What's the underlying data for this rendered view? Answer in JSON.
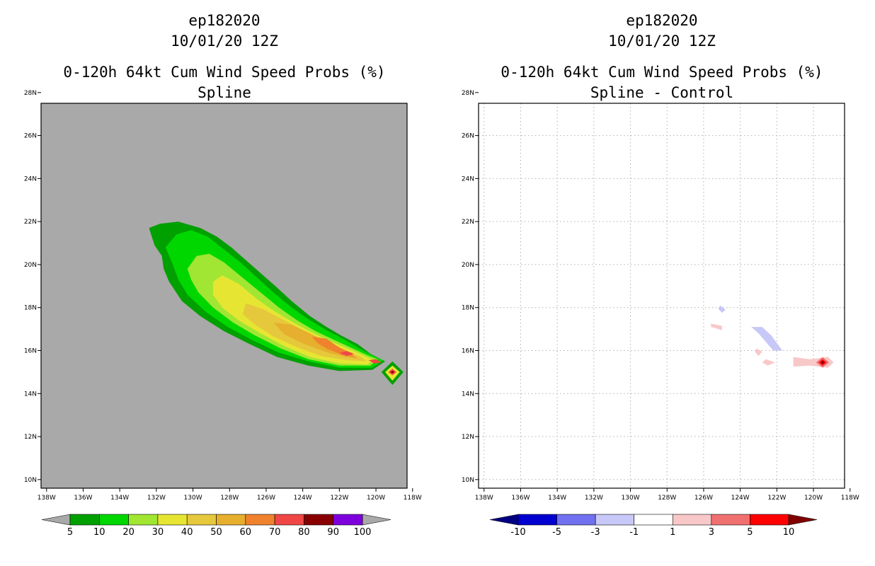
{
  "chart_data": [
    {
      "type": "heatmap",
      "storm_id": "ep182020",
      "datetime": "10/01/20 12Z",
      "title": "0-120h 64kt Cum Wind Speed Probs (%)",
      "subtitle": "Spline",
      "x_ticks": [
        "138W",
        "136W",
        "134W",
        "132W",
        "130W",
        "128W",
        "126W",
        "124W",
        "122W",
        "120W",
        "118W"
      ],
      "y_ticks": [
        "28N",
        "26N",
        "24N",
        "22N",
        "20N",
        "18N",
        "16N",
        "14N",
        "12N",
        "10N"
      ],
      "xlim": [
        -138.3,
        -118.3
      ],
      "ylim": [
        9.6,
        27.5
      ],
      "grid": false,
      "background_color": "#a9a9a9",
      "colorbar": {
        "labels": [
          "5",
          "10",
          "20",
          "30",
          "40",
          "50",
          "60",
          "70",
          "80",
          "90",
          "100"
        ],
        "colors": [
          "#00a000",
          "#00d700",
          "#a0e632",
          "#e6e632",
          "#e6c83c",
          "#e6af2d",
          "#f0822d",
          "#f04646",
          "#880000",
          "#7d00dc"
        ],
        "under_color": "#a9a9a9",
        "over_color": "#a9a9a9"
      },
      "contours": [
        {
          "level": 5,
          "color": "#00a000",
          "points": [
            [
              -132.4,
              21.7
            ],
            [
              -131.8,
              21.9
            ],
            [
              -130.8,
              22.0
            ],
            [
              -129.6,
              21.7
            ],
            [
              -128.7,
              21.3
            ],
            [
              -127.9,
              20.8
            ],
            [
              -127.1,
              20.2
            ],
            [
              -126.3,
              19.6
            ],
            [
              -125.5,
              19.0
            ],
            [
              -124.6,
              18.3
            ],
            [
              -123.6,
              17.6
            ],
            [
              -122.7,
              17.1
            ],
            [
              -121.9,
              16.7
            ],
            [
              -121.0,
              16.3
            ],
            [
              -120.3,
              15.85
            ],
            [
              -119.5,
              15.5
            ],
            [
              -120.2,
              15.1
            ],
            [
              -122.0,
              15.05
            ],
            [
              -123.7,
              15.3
            ],
            [
              -125.4,
              15.7
            ],
            [
              -126.9,
              16.3
            ],
            [
              -128.3,
              16.9
            ],
            [
              -129.6,
              17.6
            ],
            [
              -130.6,
              18.3
            ],
            [
              -131.3,
              19.2
            ],
            [
              -131.6,
              19.8
            ],
            [
              -131.7,
              20.4
            ],
            [
              -132.1,
              20.9
            ]
          ]
        },
        {
          "level": 10,
          "color": "#00d700",
          "points": [
            [
              -131.5,
              20.8
            ],
            [
              -130.9,
              21.4
            ],
            [
              -130.1,
              21.6
            ],
            [
              -129.2,
              21.3
            ],
            [
              -128.3,
              20.7
            ],
            [
              -127.4,
              20.1
            ],
            [
              -126.5,
              19.4
            ],
            [
              -125.6,
              18.7
            ],
            [
              -124.6,
              18.0
            ],
            [
              -123.6,
              17.4
            ],
            [
              -122.6,
              16.9
            ],
            [
              -121.7,
              16.5
            ],
            [
              -120.8,
              16.05
            ],
            [
              -120.0,
              15.7
            ],
            [
              -119.6,
              15.55
            ],
            [
              -120.2,
              15.2
            ],
            [
              -122.0,
              15.2
            ],
            [
              -123.7,
              15.5
            ],
            [
              -125.3,
              15.9
            ],
            [
              -126.8,
              16.5
            ],
            [
              -128.1,
              17.1
            ],
            [
              -129.3,
              17.8
            ],
            [
              -130.3,
              18.6
            ],
            [
              -130.8,
              19.3
            ],
            [
              -131.1,
              20.0
            ]
          ]
        },
        {
          "level": 20,
          "color": "#a0e632",
          "points": [
            [
              -130.3,
              19.8
            ],
            [
              -129.8,
              20.4
            ],
            [
              -129.1,
              20.5
            ],
            [
              -128.3,
              20.1
            ],
            [
              -127.3,
              19.4
            ],
            [
              -126.3,
              18.7
            ],
            [
              -125.3,
              18.0
            ],
            [
              -124.3,
              17.4
            ],
            [
              -123.3,
              16.9
            ],
            [
              -122.3,
              16.5
            ],
            [
              -121.4,
              16.15
            ],
            [
              -120.5,
              15.8
            ],
            [
              -119.9,
              15.6
            ],
            [
              -120.3,
              15.3
            ],
            [
              -122.0,
              15.3
            ],
            [
              -123.7,
              15.6
            ],
            [
              -125.2,
              16.1
            ],
            [
              -126.6,
              16.7
            ],
            [
              -127.8,
              17.3
            ],
            [
              -128.9,
              18.0
            ],
            [
              -129.7,
              18.7
            ],
            [
              -130.1,
              19.3
            ]
          ]
        },
        {
          "level": 30,
          "color": "#e6e632",
          "points": [
            [
              -128.9,
              19.2
            ],
            [
              -128.4,
              19.5
            ],
            [
              -127.5,
              19.1
            ],
            [
              -126.5,
              18.4
            ],
            [
              -125.5,
              17.8
            ],
            [
              -124.5,
              17.3
            ],
            [
              -123.4,
              16.8
            ],
            [
              -122.4,
              16.4
            ],
            [
              -121.4,
              16.05
            ],
            [
              -120.5,
              15.7
            ],
            [
              -120.1,
              15.55
            ],
            [
              -120.5,
              15.35
            ],
            [
              -122.0,
              15.4
            ],
            [
              -123.6,
              15.7
            ],
            [
              -125.0,
              16.2
            ],
            [
              -126.3,
              16.8
            ],
            [
              -127.5,
              17.4
            ],
            [
              -128.4,
              18.0
            ],
            [
              -128.9,
              18.6
            ]
          ]
        },
        {
          "level": 40,
          "color": "#e6c83c",
          "points": [
            [
              -127.1,
              18.2
            ],
            [
              -126.1,
              17.9
            ],
            [
              -125.0,
              17.4
            ],
            [
              -123.9,
              16.9
            ],
            [
              -122.8,
              16.4
            ],
            [
              -121.8,
              16.05
            ],
            [
              -120.9,
              15.75
            ],
            [
              -120.5,
              15.5
            ],
            [
              -121.6,
              15.55
            ],
            [
              -123.0,
              15.75
            ],
            [
              -124.3,
              16.15
            ],
            [
              -125.6,
              16.65
            ],
            [
              -126.6,
              17.2
            ],
            [
              -127.3,
              17.7
            ]
          ]
        },
        {
          "level": 50,
          "color": "#e6af2d",
          "points": [
            [
              -125.6,
              17.3
            ],
            [
              -124.6,
              17.2
            ],
            [
              -123.6,
              16.8
            ],
            [
              -122.6,
              16.35
            ],
            [
              -121.6,
              16.0
            ],
            [
              -120.9,
              15.6
            ],
            [
              -121.7,
              15.7
            ],
            [
              -122.8,
              15.95
            ],
            [
              -123.9,
              16.3
            ],
            [
              -125.0,
              16.75
            ]
          ]
        },
        {
          "level": 60,
          "color": "#f0822d",
          "points": [
            [
              -123.5,
              16.65
            ],
            [
              -122.7,
              16.55
            ],
            [
              -122.2,
              16.25
            ],
            [
              -121.7,
              16.0
            ],
            [
              -121.1,
              15.7
            ],
            [
              -121.8,
              15.8
            ],
            [
              -122.6,
              16.05
            ],
            [
              -123.2,
              16.35
            ]
          ]
        },
        {
          "level": 70,
          "color": "#f04646",
          "points": [
            [
              -121.6,
              15.98
            ],
            [
              -121.2,
              15.85
            ],
            [
              -121.6,
              15.75
            ],
            [
              -122.0,
              15.88
            ]
          ]
        },
        {
          "level": 70,
          "color": "#f04646",
          "points": [
            [
              -120.4,
              15.55
            ],
            [
              -120.0,
              15.6
            ],
            [
              -119.7,
              15.45
            ],
            [
              -120.1,
              15.4
            ]
          ]
        },
        {
          "level": 5,
          "color": "#00a000",
          "points": [
            [
              -119.1,
              15.5
            ],
            [
              -118.5,
              15.0
            ],
            [
              -119.1,
              14.4
            ],
            [
              -119.7,
              15.0
            ]
          ]
        },
        {
          "level": 30,
          "color": "#e6e632",
          "points": [
            [
              -119.1,
              15.3
            ],
            [
              -118.7,
              15.0
            ],
            [
              -119.1,
              14.6
            ],
            [
              -119.5,
              15.0
            ]
          ]
        },
        {
          "level": 70,
          "color": "#f04646",
          "points": [
            [
              -119.1,
              15.15
            ],
            [
              -118.88,
              15.0
            ],
            [
              -119.1,
              14.85
            ],
            [
              -119.32,
              15.0
            ]
          ]
        },
        {
          "level": 90,
          "color": "#880000",
          "points": [
            [
              -119.1,
              15.07
            ],
            [
              -119.0,
              15.0
            ],
            [
              -119.1,
              14.93
            ],
            [
              -119.2,
              15.0
            ]
          ]
        }
      ]
    },
    {
      "type": "heatmap",
      "storm_id": "ep182020",
      "datetime": "10/01/20 12Z",
      "title": "0-120h 64kt Cum Wind Speed Probs (%)",
      "subtitle": "Spline - Control",
      "x_ticks": [
        "138W",
        "136W",
        "134W",
        "132W",
        "130W",
        "128W",
        "126W",
        "124W",
        "122W",
        "120W",
        "118W"
      ],
      "y_ticks": [
        "28N",
        "26N",
        "24N",
        "22N",
        "20N",
        "18N",
        "16N",
        "14N",
        "12N",
        "10N"
      ],
      "xlim": [
        -138.3,
        -118.3
      ],
      "ylim": [
        9.6,
        27.5
      ],
      "grid": true,
      "background_color": "#ffffff",
      "colorbar": {
        "labels": [
          "-10",
          "-5",
          "-3",
          "-1",
          "1",
          "3",
          "5",
          "10"
        ],
        "colors": [
          "#0000d0",
          "#7070f0",
          "#c8c8f8",
          "#ffffff",
          "#f8c8c8",
          "#f07070",
          "#ff0000"
        ],
        "under_color": "#000080",
        "over_color": "#800000"
      },
      "contours": [
        {
          "level": -3,
          "color": "#c8c8f8",
          "points": [
            [
              -125.1,
              18.1
            ],
            [
              -124.8,
              17.9
            ],
            [
              -125.0,
              17.75
            ],
            [
              -125.2,
              17.95
            ]
          ]
        },
        {
          "level": -3,
          "color": "#c8c8f8",
          "points": [
            [
              -123.4,
              17.1
            ],
            [
              -122.8,
              17.1
            ],
            [
              -122.3,
              16.7
            ],
            [
              -121.7,
              16.0
            ],
            [
              -122.2,
              16.0
            ],
            [
              -122.6,
              16.4
            ],
            [
              -123.0,
              16.8
            ]
          ]
        },
        {
          "level": 3,
          "color": "#f8c8c8",
          "points": [
            [
              -125.6,
              17.25
            ],
            [
              -125.0,
              17.15
            ],
            [
              -125.0,
              16.95
            ],
            [
              -125.6,
              17.1
            ]
          ]
        },
        {
          "level": 3,
          "color": "#f8c8c8",
          "points": [
            [
              -123.1,
              16.1
            ],
            [
              -122.8,
              15.95
            ],
            [
              -123.0,
              15.75
            ],
            [
              -123.2,
              15.95
            ]
          ]
        },
        {
          "level": 3,
          "color": "#f8c8c8",
          "points": [
            [
              -122.6,
              15.6
            ],
            [
              -122.1,
              15.45
            ],
            [
              -122.5,
              15.3
            ],
            [
              -122.8,
              15.45
            ]
          ]
        },
        {
          "level": 3,
          "color": "#f8c8c8",
          "points": [
            [
              -121.1,
              15.7
            ],
            [
              -120.2,
              15.6
            ],
            [
              -119.2,
              15.7
            ],
            [
              -118.9,
              15.45
            ],
            [
              -119.2,
              15.2
            ],
            [
              -120.2,
              15.3
            ],
            [
              -121.1,
              15.25
            ]
          ]
        },
        {
          "level": 5,
          "color": "#f07070",
          "points": [
            [
              -119.5,
              15.7
            ],
            [
              -119.15,
              15.45
            ],
            [
              -119.5,
              15.2
            ],
            [
              -119.85,
              15.45
            ]
          ]
        },
        {
          "level": 10,
          "color": "#ff0000",
          "points": [
            [
              -119.5,
              15.6
            ],
            [
              -119.3,
              15.45
            ],
            [
              -119.5,
              15.3
            ],
            [
              -119.7,
              15.45
            ]
          ]
        },
        {
          "level": 10,
          "color": "#800000",
          "points": [
            [
              -119.5,
              15.52
            ],
            [
              -119.4,
              15.45
            ],
            [
              -119.5,
              15.38
            ],
            [
              -119.6,
              15.45
            ]
          ]
        }
      ]
    }
  ]
}
